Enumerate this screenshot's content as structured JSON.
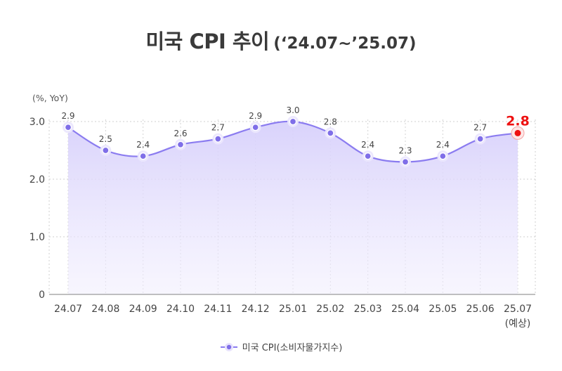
{
  "title": {
    "main": "미국 CPI 추이",
    "sub": "(‘24.07~’25.07)"
  },
  "chart_data": {
    "type": "area",
    "unit_label": "(%, YoY)",
    "x": [
      "24.07",
      "24.08",
      "24.09",
      "24.10",
      "24.11",
      "24.12",
      "25.01",
      "25.02",
      "25.03",
      "25.04",
      "25.05",
      "25.06",
      "25.07"
    ],
    "x_sublabels": {
      "25.07": "(예상)"
    },
    "series": [
      {
        "name": "미국 CPI(소비자물가지수)",
        "values": [
          2.9,
          2.5,
          2.4,
          2.6,
          2.7,
          2.9,
          3.0,
          2.8,
          2.4,
          2.3,
          2.4,
          2.7,
          2.8
        ],
        "labels": [
          "2.9",
          "2.5",
          "2.4",
          "2.6",
          "2.7",
          "2.9",
          "3.0",
          "2.8",
          "2.4",
          "2.3",
          "2.4",
          "2.7",
          "2.8"
        ]
      }
    ],
    "ylim": [
      0,
      3.0
    ],
    "yticks": [
      0,
      1.0,
      2.0,
      3.0
    ],
    "ytick_labels": [
      "0",
      "1.0",
      "2.0",
      "3.0"
    ],
    "highlight_index": 12,
    "grid": true,
    "legend_position": "bottom",
    "colors": {
      "line": "#8b7cf0",
      "fill": "#d7d0fb",
      "marker": "#7f6ee8",
      "highlight": "#ee1111"
    }
  }
}
